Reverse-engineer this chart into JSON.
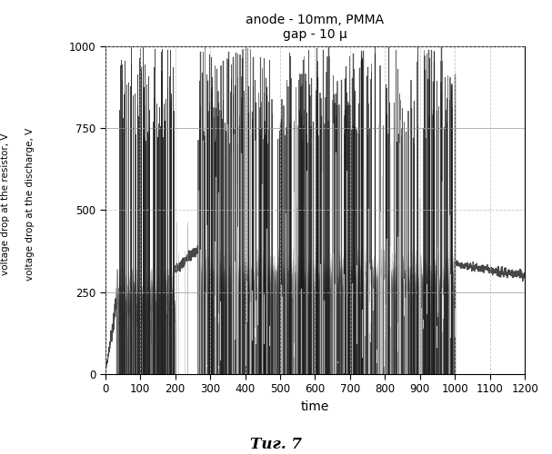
{
  "title_line1": "anode - 10mm, PMMA",
  "title_line2": "gap - 10 μ",
  "xlabel": "time",
  "ylabel1": "voltage drop at the resistor, V",
  "ylabel2": "voltage drop at the discharge, V",
  "xlim": [
    0,
    1200
  ],
  "ylim": [
    0,
    1000
  ],
  "xticks": [
    0,
    100,
    200,
    300,
    400,
    500,
    600,
    700,
    800,
    900,
    1000,
    1100,
    1200
  ],
  "yticks": [
    0,
    250,
    500,
    750,
    1000
  ],
  "caption": "Τиг. 7",
  "background_color": "#ffffff",
  "plot_bg_color": "#ffffff",
  "grid_color": "#bbbbbb",
  "dark_color": "#333333",
  "mid_color": "#666666",
  "light_color": "#999999",
  "seed": 42
}
